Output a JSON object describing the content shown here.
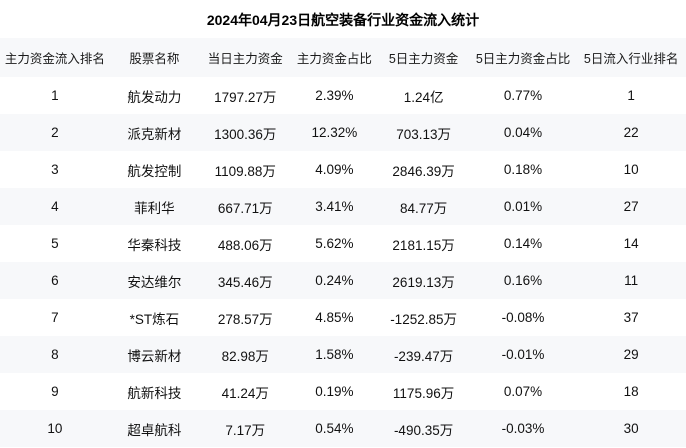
{
  "title": "2024年04月23日航空装备行业资金流入统计",
  "colors": {
    "background": "#ffffff",
    "stripe": "#f7f8fa",
    "text": "#111111"
  },
  "chart_data": {
    "type": "table",
    "title": "2024年04月23日航空装备行业资金流入统计",
    "columns": [
      "主力资金流入排名",
      "股票名称",
      "当日主力资金",
      "主力资金占比",
      "5日主力资金",
      "5日主力资金占比",
      "5日流入行业排名"
    ],
    "rows": [
      [
        "1",
        "航发动力",
        "1797.27万",
        "2.39%",
        "1.24亿",
        "0.77%",
        "1"
      ],
      [
        "2",
        "派克新材",
        "1300.36万",
        "12.32%",
        "703.13万",
        "0.04%",
        "22"
      ],
      [
        "3",
        "航发控制",
        "1109.88万",
        "4.09%",
        "2846.39万",
        "0.18%",
        "10"
      ],
      [
        "4",
        "菲利华",
        "667.71万",
        "3.41%",
        "84.77万",
        "0.01%",
        "27"
      ],
      [
        "5",
        "华秦科技",
        "488.06万",
        "5.62%",
        "2181.15万",
        "0.14%",
        "14"
      ],
      [
        "6",
        "安达维尔",
        "345.46万",
        "0.24%",
        "2619.13万",
        "0.16%",
        "11"
      ],
      [
        "7",
        "*ST炼石",
        "278.57万",
        "4.85%",
        "-1252.85万",
        "-0.08%",
        "37"
      ],
      [
        "8",
        "博云新材",
        "82.98万",
        "1.58%",
        "-239.47万",
        "-0.01%",
        "29"
      ],
      [
        "9",
        "航新科技",
        "41.24万",
        "0.19%",
        "1175.96万",
        "0.07%",
        "18"
      ],
      [
        "10",
        "超卓航科",
        "7.17万",
        "0.54%",
        "-490.35万",
        "-0.03%",
        "30"
      ]
    ]
  }
}
